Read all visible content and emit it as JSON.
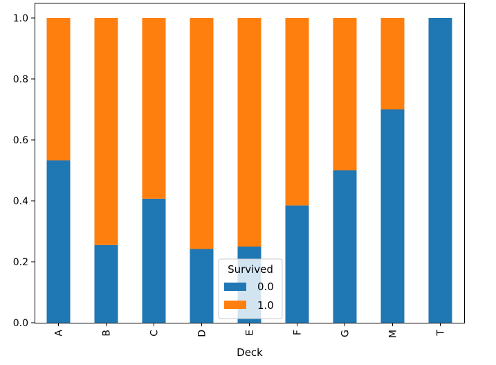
{
  "chart_data": {
    "type": "bar",
    "stacked": true,
    "categories": [
      "A",
      "B",
      "C",
      "D",
      "E",
      "F",
      "G",
      "M",
      "T"
    ],
    "series": [
      {
        "name": "0.0",
        "color": "#1f77b4",
        "values": [
          0.533,
          0.255,
          0.407,
          0.242,
          0.25,
          0.385,
          0.5,
          0.7,
          1.0
        ]
      },
      {
        "name": "1.0",
        "color": "#ff7f0e",
        "values": [
          0.467,
          0.745,
          0.593,
          0.758,
          0.75,
          0.615,
          0.5,
          0.3,
          0.0
        ]
      }
    ],
    "xlabel": "Deck",
    "ylabel": "",
    "ylim": [
      0,
      1.0
    ],
    "yticks": [
      "0.0",
      "0.2",
      "0.4",
      "0.6",
      "0.8",
      "1.0"
    ],
    "legend": {
      "title": "Survived",
      "labels": [
        "0.0",
        "1.0"
      ],
      "placement": "bottom-center"
    },
    "grid": false
  }
}
